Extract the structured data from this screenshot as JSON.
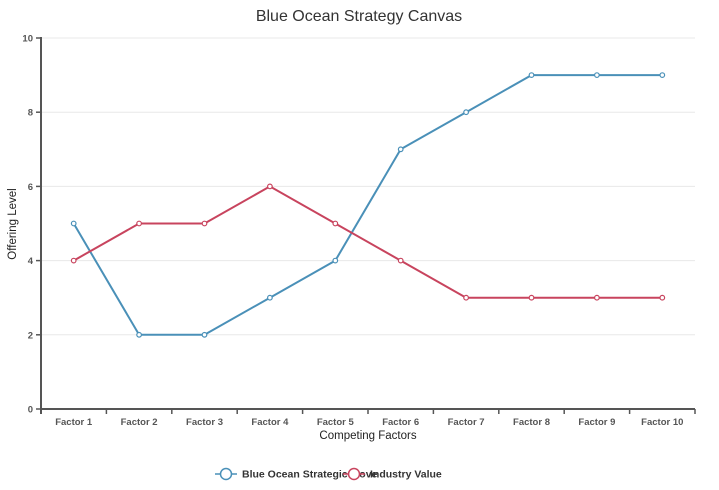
{
  "chart_data": {
    "type": "line",
    "title": "Blue Ocean Strategy Canvas",
    "xlabel": "Competing Factors",
    "ylabel": "Offering Level",
    "categories": [
      "Factor 1",
      "Factor 2",
      "Factor 3",
      "Factor 4",
      "Factor 5",
      "Factor 6",
      "Factor 7",
      "Factor 8",
      "Factor 9",
      "Factor 10"
    ],
    "series": [
      {
        "name": "Blue Ocean Strategic Move",
        "color": "#4a90b8",
        "values": [
          5,
          2,
          2,
          3,
          4,
          7,
          8,
          9,
          9,
          9
        ]
      },
      {
        "name": "Industry Value",
        "color": "#c8445e",
        "values": [
          4,
          5,
          5,
          6,
          5,
          4,
          3,
          3,
          3,
          3
        ]
      }
    ],
    "ylim": [
      0,
      10
    ],
    "yticks": [
      0,
      2,
      4,
      6,
      8,
      10
    ],
    "grid": true,
    "legend_position": "bottom"
  }
}
